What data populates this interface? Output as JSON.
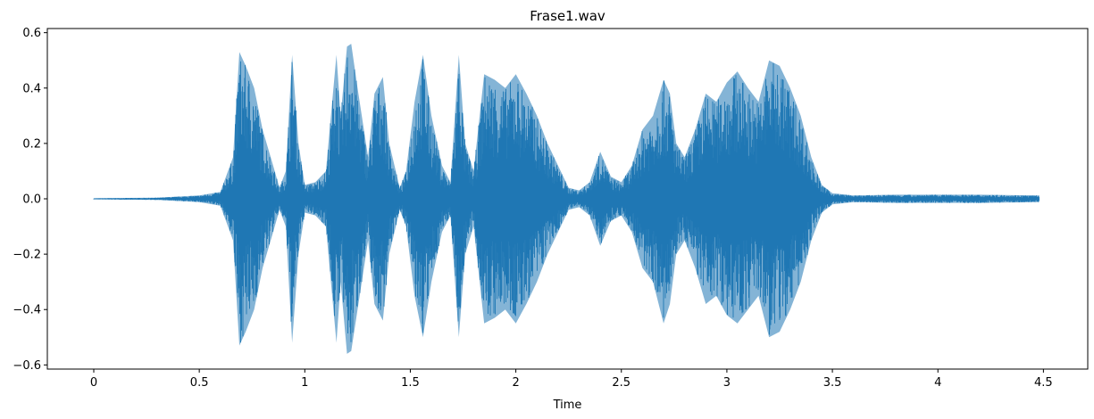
{
  "chart_data": {
    "type": "area",
    "title": "Frase1.wav",
    "xlabel": "Time",
    "ylabel": "",
    "xlim": [
      -0.22,
      4.71
    ],
    "ylim": [
      -0.615,
      0.615
    ],
    "x_ticks": [
      0,
      0.5,
      1,
      1.5,
      2,
      2.5,
      3,
      3.5,
      4,
      4.5
    ],
    "x_tick_labels": [
      "0",
      "0.5",
      "1",
      "1.5",
      "2",
      "2.5",
      "3",
      "3.5",
      "4",
      "4.5"
    ],
    "y_ticks": [
      -0.6,
      -0.4,
      -0.2,
      0.0,
      0.2,
      0.4,
      0.6
    ],
    "y_tick_labels": [
      "−0.6",
      "−0.4",
      "−0.2",
      "0.0",
      "0.2",
      "0.4",
      "0.6"
    ],
    "grid": false,
    "color": "#1f77b4",
    "series": [
      {
        "x": [
          0,
          0.3,
          0.5,
          0.6,
          0.66,
          0.69,
          0.72,
          0.76,
          0.8,
          0.85,
          0.88,
          0.91,
          0.94,
          0.97,
          1.0,
          1.05,
          1.1,
          1.15,
          1.17,
          1.2,
          1.22,
          1.25,
          1.3,
          1.33,
          1.37,
          1.4,
          1.45,
          1.48,
          1.52,
          1.56,
          1.6,
          1.65,
          1.69,
          1.73,
          1.76,
          1.8,
          1.85,
          1.9,
          1.95,
          2.0,
          2.05,
          2.1,
          2.15,
          2.2,
          2.25,
          2.3,
          2.35,
          2.4,
          2.45,
          2.5,
          2.55,
          2.6,
          2.65,
          2.7,
          2.73,
          2.76,
          2.8,
          2.85,
          2.9,
          2.95,
          3.0,
          3.05,
          3.1,
          3.15,
          3.2,
          3.25,
          3.3,
          3.35,
          3.4,
          3.45,
          3.5,
          3.6,
          3.8,
          4.0,
          4.2,
          4.48
        ],
        "y_upper": [
          0.002,
          0.004,
          0.012,
          0.025,
          0.15,
          0.53,
          0.48,
          0.4,
          0.25,
          0.12,
          0.04,
          0.1,
          0.52,
          0.2,
          0.05,
          0.06,
          0.1,
          0.52,
          0.3,
          0.55,
          0.56,
          0.4,
          0.15,
          0.38,
          0.44,
          0.2,
          0.04,
          0.1,
          0.35,
          0.52,
          0.3,
          0.12,
          0.06,
          0.52,
          0.2,
          0.1,
          0.45,
          0.43,
          0.4,
          0.45,
          0.38,
          0.3,
          0.2,
          0.12,
          0.04,
          0.03,
          0.06,
          0.17,
          0.08,
          0.06,
          0.12,
          0.25,
          0.3,
          0.43,
          0.38,
          0.2,
          0.15,
          0.25,
          0.38,
          0.35,
          0.42,
          0.46,
          0.4,
          0.35,
          0.5,
          0.48,
          0.4,
          0.3,
          0.15,
          0.05,
          0.02,
          0.012,
          0.015,
          0.015,
          0.015,
          0.012
        ],
        "y_lower": [
          -0.002,
          -0.004,
          -0.012,
          -0.025,
          -0.15,
          -0.53,
          -0.48,
          -0.4,
          -0.25,
          -0.12,
          -0.04,
          -0.1,
          -0.52,
          -0.2,
          -0.05,
          -0.06,
          -0.1,
          -0.52,
          -0.3,
          -0.56,
          -0.55,
          -0.4,
          -0.15,
          -0.38,
          -0.44,
          -0.2,
          -0.04,
          -0.1,
          -0.35,
          -0.5,
          -0.3,
          -0.12,
          -0.06,
          -0.5,
          -0.2,
          -0.1,
          -0.45,
          -0.43,
          -0.4,
          -0.45,
          -0.38,
          -0.3,
          -0.2,
          -0.12,
          -0.04,
          -0.03,
          -0.06,
          -0.17,
          -0.08,
          -0.06,
          -0.12,
          -0.25,
          -0.3,
          -0.45,
          -0.38,
          -0.2,
          -0.15,
          -0.25,
          -0.38,
          -0.35,
          -0.42,
          -0.45,
          -0.4,
          -0.35,
          -0.5,
          -0.48,
          -0.4,
          -0.3,
          -0.15,
          -0.05,
          -0.02,
          -0.012,
          -0.015,
          -0.015,
          -0.015,
          -0.012
        ]
      }
    ]
  }
}
